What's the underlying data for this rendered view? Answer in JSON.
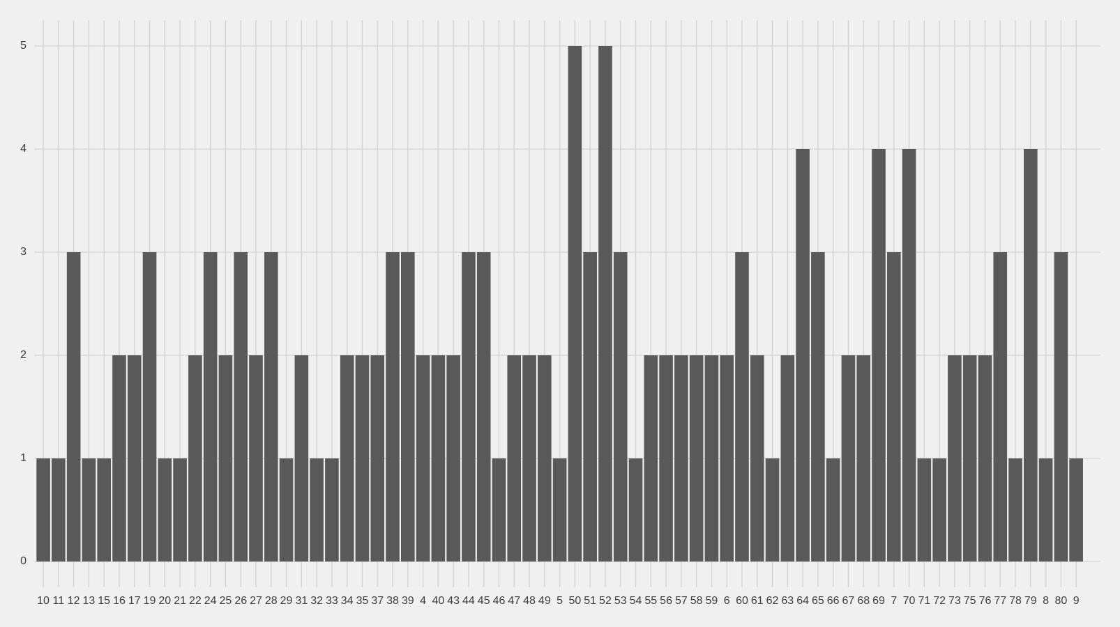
{
  "chart_data": {
    "type": "bar",
    "categories": [
      "10",
      "11",
      "12",
      "13",
      "15",
      "16",
      "17",
      "19",
      "20",
      "21",
      "22",
      "24",
      "25",
      "26",
      "27",
      "28",
      "29",
      "31",
      "32",
      "33",
      "34",
      "35",
      "37",
      "38",
      "39",
      "4",
      "40",
      "43",
      "44",
      "45",
      "46",
      "47",
      "48",
      "49",
      "5",
      "50",
      "51",
      "52",
      "53",
      "54",
      "55",
      "56",
      "57",
      "58",
      "59",
      "6",
      "60",
      "61",
      "62",
      "63",
      "64",
      "65",
      "66",
      "67",
      "68",
      "69",
      "7",
      "70",
      "71",
      "72",
      "73",
      "75",
      "76",
      "77",
      "78",
      "79",
      "8",
      "80",
      "9"
    ],
    "values": [
      1,
      1,
      3,
      1,
      1,
      2,
      2,
      3,
      1,
      1,
      2,
      3,
      2,
      3,
      2,
      3,
      1,
      2,
      1,
      1,
      2,
      2,
      2,
      3,
      3,
      2,
      2,
      2,
      3,
      3,
      1,
      2,
      2,
      2,
      1,
      5,
      3,
      5,
      3,
      1,
      2,
      2,
      2,
      2,
      2,
      2,
      3,
      2,
      1,
      2,
      4,
      3,
      1,
      2,
      2,
      4,
      3,
      4,
      1,
      1,
      2,
      2,
      2,
      3,
      1,
      4,
      1,
      3,
      1
    ],
    "color": "#595959",
    "ylim": [
      -0.25,
      5.25
    ],
    "yticks": [
      0,
      1,
      2,
      3,
      4,
      5
    ],
    "grid": true
  }
}
